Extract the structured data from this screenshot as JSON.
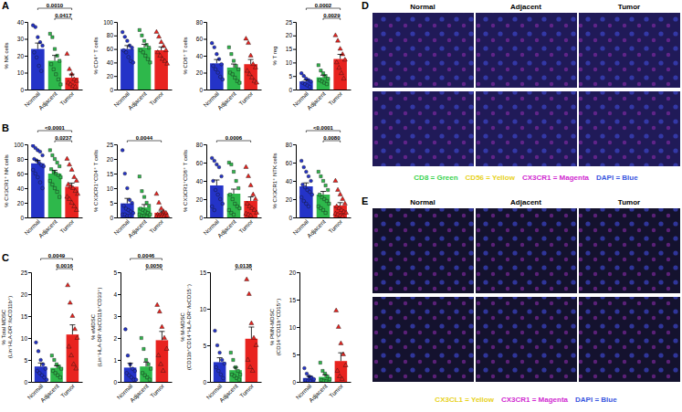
{
  "panel_labels": [
    "A",
    "B",
    "C",
    "D",
    "E"
  ],
  "chart_data": [
    {
      "type": "bar",
      "ylabel": "% NK cells",
      "categories": [
        "Normal",
        "Adjacent",
        "Tumor"
      ],
      "colors": [
        "#2433c8",
        "#2eb84b",
        "#e8231f"
      ],
      "values": [
        24,
        17,
        7
      ],
      "errors": [
        3.5,
        3.2,
        2.1
      ],
      "points": [
        [
          38,
          37,
          31,
          28,
          26,
          22,
          19,
          14,
          11
        ],
        [
          33,
          31,
          24,
          20,
          17,
          15,
          12,
          9,
          6,
          3
        ],
        [
          21,
          12,
          9,
          6,
          5,
          4,
          3,
          2,
          1.5
        ]
      ],
      "ylim": [
        0,
        40
      ],
      "yticks": [
        0,
        10,
        20,
        30,
        40
      ],
      "annotations": [
        {
          "from": 0,
          "to": 2,
          "text": "0.0010"
        },
        {
          "from": 1,
          "to": 2,
          "text": "0.0417"
        }
      ]
    },
    {
      "type": "bar",
      "ylabel": "% CD4⁺ T cells",
      "categories": [
        "Normal",
        "Adjacent",
        "Tumor"
      ],
      "colors": [
        "#2433c8",
        "#2eb84b",
        "#e8231f"
      ],
      "values": [
        60,
        62,
        58
      ],
      "errors": [
        5,
        5,
        5
      ],
      "points": [
        [
          85,
          78,
          72,
          65,
          62,
          58,
          55,
          48,
          42,
          40
        ],
        [
          88,
          80,
          72,
          66,
          62,
          58,
          55,
          50,
          45,
          40
        ],
        [
          85,
          78,
          70,
          64,
          58,
          55,
          50,
          45,
          42,
          38
        ]
      ],
      "ylim": [
        0,
        100
      ],
      "yticks": [
        0,
        20,
        40,
        60,
        80,
        100
      ],
      "annotations": []
    },
    {
      "type": "bar",
      "ylabel": "% CD8⁺ T cells",
      "categories": [
        "Normal",
        "Adjacent",
        "Tumor"
      ],
      "colors": [
        "#2433c8",
        "#2eb84b",
        "#e8231f"
      ],
      "values": [
        31,
        26,
        30
      ],
      "errors": [
        4.5,
        4.2,
        5.5
      ],
      "points": [
        [
          55,
          50,
          42,
          36,
          30,
          28,
          24,
          20,
          15,
          12
        ],
        [
          50,
          42,
          34,
          28,
          24,
          20,
          18,
          14,
          10,
          8
        ],
        [
          60,
          55,
          40,
          30,
          26,
          22,
          18,
          14,
          10,
          8
        ]
      ],
      "ylim": [
        0,
        80
      ],
      "yticks": [
        0,
        20,
        40,
        60,
        80
      ],
      "annotations": []
    },
    {
      "type": "bar",
      "ylabel": "% T reg",
      "categories": [
        "Normal",
        "Adjacent",
        "Tumor"
      ],
      "colors": [
        "#2433c8",
        "#2eb84b",
        "#e8231f"
      ],
      "values": [
        3,
        4.5,
        11.3
      ],
      "errors": [
        0.5,
        0.8,
        1.7
      ],
      "points": [
        [
          6,
          5,
          4,
          3.5,
          3,
          2.5,
          2,
          1.5,
          1
        ],
        [
          9,
          7,
          6,
          5,
          4,
          3.5,
          3,
          2.5,
          2
        ],
        [
          20,
          18,
          15,
          13,
          11,
          10,
          8,
          6,
          4
        ]
      ],
      "ylim": [
        0,
        25
      ],
      "yticks": [
        0,
        5,
        10,
        15,
        20,
        25
      ],
      "annotations": [
        {
          "from": 0,
          "to": 2,
          "text": "0.0002"
        },
        {
          "from": 1,
          "to": 2,
          "text": "0.0029"
        }
      ]
    },
    {
      "type": "bar",
      "ylabel": "% CX3CR1⁺ NK cells",
      "categories": [
        "Normal",
        "Adjacent",
        "Tumor"
      ],
      "colors": [
        "#2433c8",
        "#2eb84b",
        "#e8231f"
      ],
      "values": [
        74,
        60,
        42
      ],
      "errors": [
        4,
        4.5,
        5
      ],
      "points": [
        [
          98,
          95,
          92,
          90,
          85,
          80,
          78,
          75,
          72,
          70,
          65,
          60,
          55,
          48,
          40
        ],
        [
          92,
          85,
          80,
          75,
          70,
          66,
          62,
          60,
          58,
          55,
          50,
          45,
          40,
          35,
          28
        ],
        [
          80,
          72,
          65,
          55,
          50,
          45,
          42,
          40,
          36,
          32,
          28,
          25,
          20,
          15,
          10
        ]
      ],
      "ylim": [
        0,
        100
      ],
      "yticks": [
        0,
        20,
        40,
        60,
        80,
        100
      ],
      "annotations": [
        {
          "from": 0,
          "to": 2,
          "text": "<0.0001"
        },
        {
          "from": 1,
          "to": 2,
          "text": "0.0237"
        }
      ]
    },
    {
      "type": "bar",
      "ylabel": "% CX3CR1⁺CD4⁺ T cells",
      "categories": [
        "Normal",
        "Adjacent",
        "Tumor"
      ],
      "colors": [
        "#2433c8",
        "#2eb84b",
        "#e8231f"
      ],
      "values": [
        4.8,
        3.4,
        1.6
      ],
      "errors": [
        1.7,
        1.0,
        0.6
      ],
      "points": [
        [
          23,
          15,
          10,
          6,
          5,
          4,
          3,
          2.5,
          2,
          1.5,
          1,
          1,
          0.5,
          0.5
        ],
        [
          14,
          9,
          7,
          5,
          4,
          3,
          2.5,
          2,
          1.5,
          1,
          1,
          0.5,
          0.5,
          0.3
        ],
        [
          8,
          5,
          3,
          2,
          1.5,
          1,
          1,
          0.8,
          0.5,
          0.5,
          0.3,
          0.2,
          0.2,
          0.1
        ]
      ],
      "ylim": [
        0,
        25
      ],
      "yticks": [
        0,
        5,
        10,
        15,
        20,
        25
      ],
      "annotations": [
        {
          "from": 0,
          "to": 2,
          "text": "0.0044"
        }
      ]
    },
    {
      "type": "bar",
      "ylabel": "% CX3CR1⁺CD8⁺ T cells",
      "categories": [
        "Normal",
        "Adjacent",
        "Tumor"
      ],
      "colors": [
        "#2433c8",
        "#2eb84b",
        "#e8231f"
      ],
      "values": [
        35,
        26,
        18
      ],
      "errors": [
        6,
        5,
        4.5
      ],
      "points": [
        [
          65,
          62,
          58,
          55,
          45,
          40,
          30,
          25,
          20,
          15,
          12,
          8
        ],
        [
          60,
          58,
          50,
          40,
          32,
          25,
          20,
          15,
          12,
          10,
          8,
          5,
          3
        ],
        [
          55,
          45,
          35,
          25,
          20,
          15,
          12,
          10,
          8,
          5,
          4,
          3,
          2
        ]
      ],
      "ylim": [
        0,
        80
      ],
      "yticks": [
        0,
        20,
        40,
        60,
        80
      ],
      "annotations": [
        {
          "from": 0,
          "to": 2,
          "text": "0.0006"
        }
      ]
    },
    {
      "type": "bar",
      "ylabel": "% CX3CR1⁺ NTK cells",
      "categories": [
        "Normal",
        "Adjacent",
        "Tumor"
      ],
      "colors": [
        "#2433c8",
        "#2eb84b",
        "#e8231f"
      ],
      "values": [
        34,
        25,
        13
      ],
      "errors": [
        3.8,
        3.5,
        3.2
      ],
      "points": [
        [
          62,
          55,
          50,
          45,
          40,
          36,
          33,
          30,
          28,
          25,
          22,
          18,
          15,
          12
        ],
        [
          50,
          45,
          40,
          35,
          30,
          25,
          22,
          20,
          18,
          15,
          12,
          10,
          8,
          5
        ],
        [
          40,
          30,
          25,
          20,
          15,
          12,
          10,
          8,
          6,
          5,
          4,
          3,
          2,
          1
        ]
      ],
      "ylim": [
        0,
        80
      ],
      "yticks": [
        0,
        20,
        40,
        60,
        80
      ],
      "annotations": [
        {
          "from": 0,
          "to": 2,
          "text": "<0.0001"
        },
        {
          "from": 1,
          "to": 2,
          "text": "0.0080"
        }
      ]
    },
    {
      "type": "bar",
      "ylabel": "% Total MDSC\n(Lin⁻HLA-DR⁻/loCD11b⁺)",
      "categories": [
        "Normal",
        "Adjacent",
        "Tumor"
      ],
      "colors": [
        "#2433c8",
        "#2eb84b",
        "#e8231f"
      ],
      "values": [
        3.5,
        3.2,
        10.8
      ],
      "errors": [
        0.8,
        0.5,
        2.2
      ],
      "points": [
        [
          9,
          7,
          5,
          4,
          3,
          2.5,
          2,
          1.5,
          1,
          0.5
        ],
        [
          6,
          5,
          4,
          3.5,
          3,
          2.5,
          2,
          1.5,
          1
        ],
        [
          22,
          18,
          15,
          12,
          10,
          8,
          6,
          4,
          3
        ]
      ],
      "ylim": [
        0,
        25
      ],
      "yticks": [
        0,
        5,
        10,
        15,
        20,
        25
      ],
      "annotations": [
        {
          "from": 0,
          "to": 2,
          "text": "0.0049"
        },
        {
          "from": 1,
          "to": 2,
          "text": "0.0016"
        }
      ]
    },
    {
      "type": "bar",
      "ylabel": "% eMDSC\n(Lin⁻HLA-DR⁻/loCD11b⁺CD33⁺)",
      "categories": [
        "Normal",
        "Adjacent",
        "Tumor"
      ],
      "colors": [
        "#2433c8",
        "#2eb84b",
        "#e8231f"
      ],
      "values": [
        0.65,
        0.7,
        1.9
      ],
      "errors": [
        0.2,
        0.2,
        0.4
      ],
      "points": [
        [
          2.4,
          1.2,
          0.8,
          0.6,
          0.5,
          0.4,
          0.3,
          0.2,
          0.1,
          0.1
        ],
        [
          2,
          1.5,
          1,
          0.8,
          0.6,
          0.4,
          0.3,
          0.2,
          0.1
        ],
        [
          3.5,
          3.2,
          2.5,
          2,
          1.5,
          1.2,
          0.8,
          0.5
        ]
      ],
      "ylim": [
        0,
        5
      ],
      "yticks": [
        0,
        1,
        2,
        3,
        4,
        5
      ],
      "annotations": [
        {
          "from": 0,
          "to": 2,
          "text": "0.0046"
        },
        {
          "from": 1,
          "to": 2,
          "text": "0.0050"
        }
      ]
    },
    {
      "type": "bar",
      "ylabel": "% M-MDSC\n(CD11b⁺CD14⁺HLA-DR⁻/loCD15⁻)",
      "categories": [
        "Normal",
        "Adjacent",
        "Tumor"
      ],
      "colors": [
        "#2433c8",
        "#2eb84b",
        "#e8231f"
      ],
      "values": [
        2.7,
        1.6,
        5.9
      ],
      "errors": [
        0.6,
        0.4,
        1.6
      ],
      "points": [
        [
          7,
          5,
          4,
          3,
          2.5,
          2,
          1.5,
          1,
          0.5
        ],
        [
          4,
          3,
          2,
          1.5,
          1,
          1,
          0.8,
          0.5,
          0.3
        ],
        [
          14,
          12,
          8,
          6,
          5,
          3,
          2,
          1.5
        ]
      ],
      "ylim": [
        0,
        15
      ],
      "yticks": [
        0,
        5,
        10,
        15
      ],
      "annotations": [
        {
          "from": 1,
          "to": 2,
          "text": "0.0138"
        }
      ]
    },
    {
      "type": "bar",
      "ylabel": "% PMN-MDSC\n(CD14⁻CD11b⁺CD15⁺)",
      "categories": [
        "Normal",
        "Adjacent",
        "Tumor"
      ],
      "colors": [
        "#2433c8",
        "#2eb84b",
        "#e8231f"
      ],
      "values": [
        0.7,
        0.9,
        3.8
      ],
      "errors": [
        0.3,
        0.4,
        1.5
      ],
      "points": [
        [
          2.5,
          1.5,
          1,
          0.8,
          0.5,
          0.3,
          0.2,
          0.1
        ],
        [
          3.5,
          2,
          1.5,
          1,
          0.5,
          0.3,
          0.2,
          0.1
        ],
        [
          13,
          10,
          7,
          5,
          3,
          2,
          1,
          0.5
        ]
      ],
      "ylim": [
        0,
        20
      ],
      "yticks": [
        0,
        5,
        10,
        15,
        20
      ],
      "annotations": []
    }
  ],
  "images": [
    {
      "columns": [
        "Normal",
        "Adjacent",
        "Tumor"
      ],
      "legend": [
        {
          "text": "CD8 = Green",
          "color": "#3bd34f"
        },
        {
          "text": "CD56 = Yellow",
          "color": "#e8d21c"
        },
        {
          "text": "CX3CR1 = Magenta",
          "color": "#d12ad1"
        },
        {
          "text": "DAPI = Blue",
          "color": "#3a57e0"
        }
      ]
    },
    {
      "columns": [
        "Normal",
        "Adjacent",
        "Tumor"
      ],
      "legend": [
        {
          "text": "CX3CL1 = Yellow",
          "color": "#e8d21c"
        },
        {
          "text": "CX3CR1 = Magenta",
          "color": "#d12ad1"
        },
        {
          "text": "DAPI = Blue",
          "color": "#3a57e0"
        }
      ]
    }
  ]
}
